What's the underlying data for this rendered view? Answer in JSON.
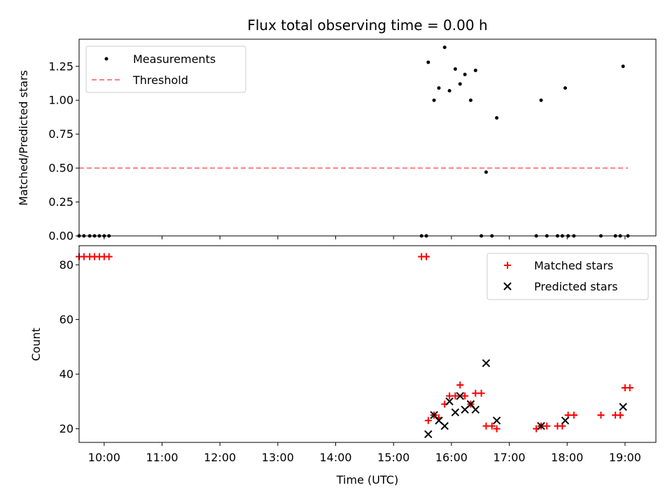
{
  "chart_data": [
    {
      "type": "scatter",
      "title": "Flux total observing time = 0.00 h",
      "xlabel": "",
      "ylabel": "Matched/Predicted stars",
      "xlim": [
        "09:34",
        "19:32"
      ],
      "ylim": [
        0,
        1.45
      ],
      "yticks": [
        "0.00",
        "0.25",
        "0.50",
        "0.75",
        "1.00",
        "1.25"
      ],
      "grid": false,
      "legend_position": "upper-left",
      "series": [
        {
          "name": "Measurements",
          "marker": "dot",
          "color": "#000000",
          "points": [
            {
              "x": "09:34",
              "y": 0
            },
            {
              "x": "09:39",
              "y": 0
            },
            {
              "x": "09:45",
              "y": 0
            },
            {
              "x": "09:50",
              "y": 0
            },
            {
              "x": "09:55",
              "y": 0
            },
            {
              "x": "10:00",
              "y": 0
            },
            {
              "x": "10:05",
              "y": 0
            },
            {
              "x": "15:29",
              "y": 0
            },
            {
              "x": "15:34",
              "y": 0
            },
            {
              "x": "15:36",
              "y": 1.28
            },
            {
              "x": "15:42",
              "y": 1.0
            },
            {
              "x": "15:47",
              "y": 1.09
            },
            {
              "x": "15:53",
              "y": 1.39
            },
            {
              "x": "15:58",
              "y": 1.07
            },
            {
              "x": "16:04",
              "y": 1.23
            },
            {
              "x": "16:09",
              "y": 1.12
            },
            {
              "x": "16:14",
              "y": 1.19
            },
            {
              "x": "16:20",
              "y": 1.0
            },
            {
              "x": "16:25",
              "y": 1.22
            },
            {
              "x": "16:31",
              "y": 0
            },
            {
              "x": "16:36",
              "y": 0.47
            },
            {
              "x": "16:42",
              "y": 0
            },
            {
              "x": "16:47",
              "y": 0.87
            },
            {
              "x": "17:28",
              "y": 0
            },
            {
              "x": "17:33",
              "y": 1.0
            },
            {
              "x": "17:39",
              "y": 0
            },
            {
              "x": "17:50",
              "y": 0
            },
            {
              "x": "17:55",
              "y": 0
            },
            {
              "x": "17:58",
              "y": 1.09
            },
            {
              "x": "18:01",
              "y": 0
            },
            {
              "x": "18:07",
              "y": 0
            },
            {
              "x": "18:35",
              "y": 0
            },
            {
              "x": "18:50",
              "y": 0
            },
            {
              "x": "18:55",
              "y": 0
            },
            {
              "x": "18:58",
              "y": 1.25
            },
            {
              "x": "19:03",
              "y": 0
            }
          ]
        },
        {
          "name": "Threshold",
          "marker": "dashed-line",
          "color": "#ff8080",
          "points": [
            {
              "x": "09:34",
              "y": 0.5
            },
            {
              "x": "19:03",
              "y": 0.5
            }
          ]
        }
      ]
    },
    {
      "type": "scatter",
      "title": "",
      "xlabel": "Time (UTC)",
      "ylabel": "Count",
      "xlim": [
        "09:34",
        "19:32"
      ],
      "ylim": [
        15,
        87
      ],
      "yticks": [
        "20",
        "40",
        "60",
        "80"
      ],
      "xticks": [
        "10:00",
        "11:00",
        "12:00",
        "13:00",
        "14:00",
        "15:00",
        "16:00",
        "17:00",
        "18:00",
        "19:00"
      ],
      "grid": false,
      "legend_position": "upper-right",
      "series": [
        {
          "name": "Matched stars",
          "marker": "plus",
          "color": "#ff0000",
          "points": [
            {
              "x": "09:34",
              "y": 83
            },
            {
              "x": "09:39",
              "y": 83
            },
            {
              "x": "09:45",
              "y": 83
            },
            {
              "x": "09:50",
              "y": 83
            },
            {
              "x": "09:55",
              "y": 83
            },
            {
              "x": "10:00",
              "y": 83
            },
            {
              "x": "10:05",
              "y": 83
            },
            {
              "x": "15:29",
              "y": 83
            },
            {
              "x": "15:34",
              "y": 83
            },
            {
              "x": "15:36",
              "y": 23
            },
            {
              "x": "15:42",
              "y": 25
            },
            {
              "x": "15:47",
              "y": 24
            },
            {
              "x": "15:53",
              "y": 29
            },
            {
              "x": "15:58",
              "y": 32
            },
            {
              "x": "16:04",
              "y": 32
            },
            {
              "x": "16:09",
              "y": 36
            },
            {
              "x": "16:14",
              "y": 32
            },
            {
              "x": "16:20",
              "y": 29
            },
            {
              "x": "16:25",
              "y": 33
            },
            {
              "x": "16:31",
              "y": 33
            },
            {
              "x": "16:36",
              "y": 21
            },
            {
              "x": "16:42",
              "y": 21
            },
            {
              "x": "16:47",
              "y": 20
            },
            {
              "x": "17:28",
              "y": 20
            },
            {
              "x": "17:33",
              "y": 21
            },
            {
              "x": "17:39",
              "y": 21
            },
            {
              "x": "17:50",
              "y": 21
            },
            {
              "x": "17:55",
              "y": 21
            },
            {
              "x": "18:01",
              "y": 25
            },
            {
              "x": "18:07",
              "y": 25
            },
            {
              "x": "18:35",
              "y": 25
            },
            {
              "x": "18:50",
              "y": 25
            },
            {
              "x": "18:55",
              "y": 25
            },
            {
              "x": "19:00",
              "y": 35
            },
            {
              "x": "19:05",
              "y": 35
            }
          ]
        },
        {
          "name": "Predicted stars",
          "marker": "x",
          "color": "#000000",
          "points": [
            {
              "x": "15:36",
              "y": 18
            },
            {
              "x": "15:42",
              "y": 25
            },
            {
              "x": "15:47",
              "y": 23
            },
            {
              "x": "15:53",
              "y": 21
            },
            {
              "x": "15:58",
              "y": 30
            },
            {
              "x": "16:04",
              "y": 26
            },
            {
              "x": "16:09",
              "y": 32
            },
            {
              "x": "16:14",
              "y": 27
            },
            {
              "x": "16:20",
              "y": 29
            },
            {
              "x": "16:25",
              "y": 27
            },
            {
              "x": "16:36",
              "y": 44
            },
            {
              "x": "16:47",
              "y": 23
            },
            {
              "x": "17:33",
              "y": 21
            },
            {
              "x": "17:58",
              "y": 23
            },
            {
              "x": "18:58",
              "y": 28
            }
          ]
        }
      ]
    }
  ]
}
